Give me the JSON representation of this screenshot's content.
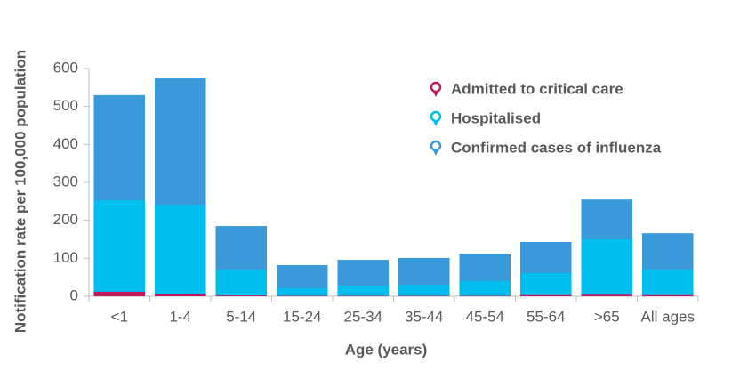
{
  "chart_data": {
    "type": "bar",
    "x_label": "Age (years)",
    "y_label": "Notification rate  per  100,000  population",
    "categories": [
      "<1",
      "1-4",
      "5-14",
      "15-24",
      "25-34",
      "35-44",
      "45-54",
      "55-64",
      ">65",
      "All ages"
    ],
    "series": [
      {
        "name": "Admitted to critical care",
        "color": "#c2185b",
        "values": [
          12,
          5,
          2,
          1,
          1,
          1,
          1,
          3,
          4,
          3
        ]
      },
      {
        "name": "Hospitalised",
        "color": "#00bfef",
        "values": [
          253,
          241,
          70,
          21,
          28,
          30,
          40,
          61,
          150,
          70
        ]
      },
      {
        "name": "Confirmed cases of influenza",
        "color": "#3a9ad9",
        "values": [
          530,
          574,
          185,
          82,
          96,
          101,
          112,
          143,
          255,
          166
        ]
      }
    ],
    "ylim": [
      0,
      600
    ],
    "yticks": [
      0,
      100,
      200,
      300,
      400,
      500,
      600
    ],
    "grid": false,
    "legend": "upper right"
  }
}
